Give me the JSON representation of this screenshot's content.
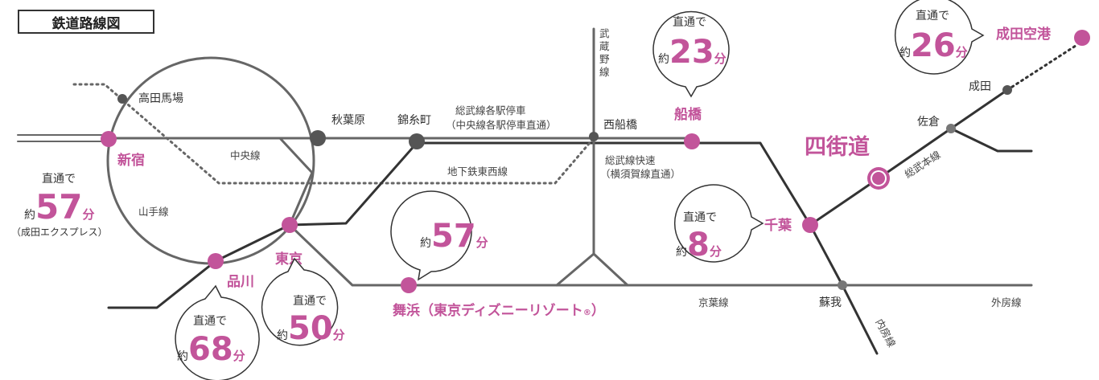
{
  "title": "鉄道路線図",
  "colors": {
    "accent": "#c2549a",
    "line": "#555555",
    "text": "#333333"
  },
  "lines": {
    "chuo": "中央線",
    "yamanote": "山手線",
    "tozai": "地下鉄東西線",
    "musashino": [
      "武",
      "蔵",
      "野",
      "線"
    ],
    "sobu_local": [
      "総武線各駅停車",
      "（中央線各駅停車直通）"
    ],
    "sobu_rapid": [
      "総武線快速",
      "（横須賀線直通）"
    ],
    "keiyo": "京葉線",
    "sotobo": "外房線",
    "uchibo": "内房線",
    "sobu_main": "総武本線"
  },
  "stations": {
    "takadanobaba": "高田馬場",
    "shinjuku": "新宿",
    "akihabara": "秋葉原",
    "kinshicho": "錦糸町",
    "nishifunabashi": "西船橋",
    "funabashi": "船橋",
    "tokyo": "東京",
    "shinagawa": "品川",
    "maihama": "舞浜（東京ディズニーリゾート",
    "maihama_mark": "®",
    "maihama_close": "）",
    "chiba": "千葉",
    "soga": "蘇我",
    "yotsukaido": "四街道",
    "sakura": "佐倉",
    "narita": "成田",
    "narita_airport": "成田空港"
  },
  "bubbles": {
    "shinjuku": {
      "line1": "直通で",
      "prefix": "約",
      "num": "57",
      "unit": "分",
      "note": "（成田エクスプレス）"
    },
    "shinagawa": {
      "line1": "直通で",
      "prefix": "約",
      "num": "68",
      "unit": "分"
    },
    "tokyo": {
      "line1": "直通で",
      "prefix": "約",
      "num": "50",
      "unit": "分"
    },
    "maihama": {
      "prefix": "約",
      "num": "57",
      "unit": "分"
    },
    "funabashi": {
      "line1": "直通で",
      "prefix": "約",
      "num": "23",
      "unit": "分"
    },
    "chiba": {
      "line1": "直通で",
      "prefix": "約",
      "num": "8",
      "unit": "分"
    },
    "narita_airport": {
      "line1": "直通で",
      "prefix": "約",
      "num": "26",
      "unit": "分"
    }
  }
}
